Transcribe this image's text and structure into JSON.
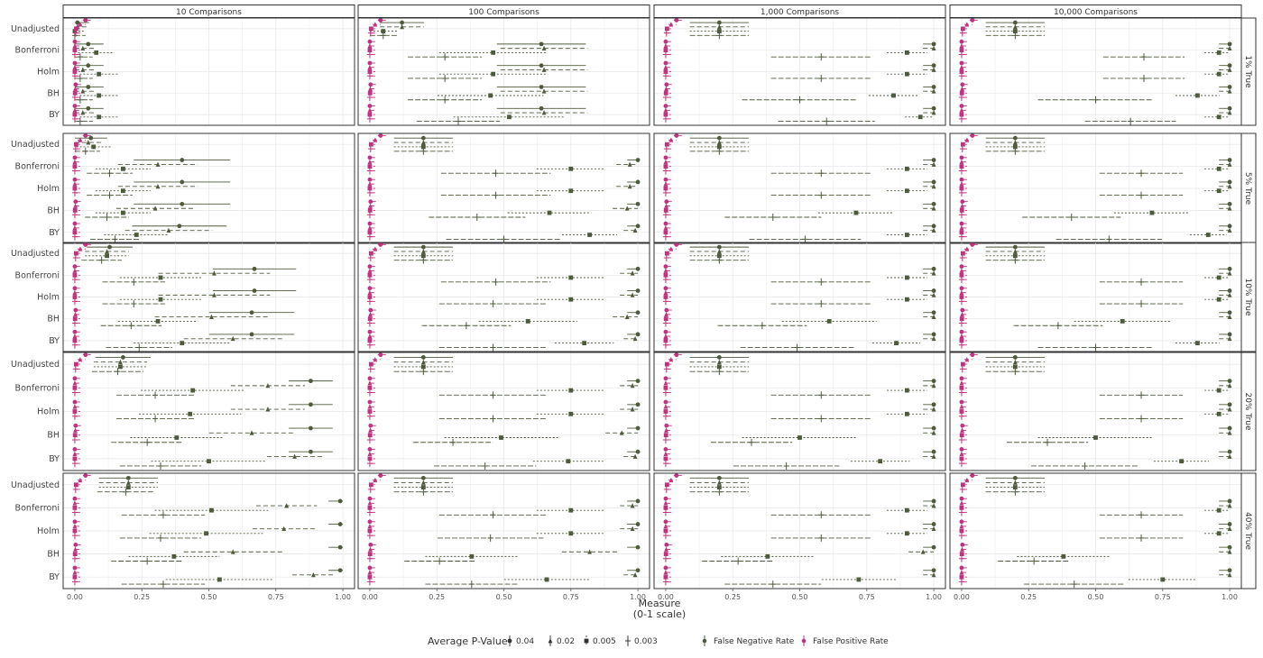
{
  "chart_data": {
    "type": "scatter",
    "x_axis": {
      "title_line1": "Measure",
      "title_line2": "(0-1 scale)",
      "range": [
        0,
        1
      ],
      "ticks": [
        "0.00",
        "0.25",
        "0.50",
        "0.75",
        "1.00"
      ],
      "grid": true
    },
    "y_categories": [
      "Unadjusted",
      "Bonferroni",
      "Holm",
      "BH",
      "BY"
    ],
    "columns": [
      "10 Comparisons",
      "100 Comparisons",
      "1,000 Comparisons",
      "10,000 Comparisons"
    ],
    "rows": [
      "1% True",
      "5% True",
      "10% True",
      "20% True",
      "40% True"
    ],
    "legend": {
      "title": "Average P-Value",
      "p_values": [
        "0.04",
        "0.02",
        "0.005",
        "0.003"
      ],
      "measures": [
        "False Negative Rate",
        "False Positive Rate"
      ],
      "position": "bottom"
    },
    "colors": {
      "fnr": "#4e5a3c",
      "fpr": "#c2307f"
    },
    "series_note_keys": {
      "p_order": [
        "0.04",
        "0.02",
        "0.005",
        "0.003"
      ]
    },
    "fpr": {
      "Unadjusted": [
        0.04,
        0.02,
        0.005,
        0.003
      ],
      "Bonferroni": [
        0.0,
        0.0,
        0.0,
        0.0
      ],
      "Holm": [
        0.0,
        0.0,
        0.0,
        0.0
      ],
      "BH": [
        0.003,
        0.002,
        0.001,
        0.0
      ],
      "BY": [
        0.0,
        0.0,
        0.0,
        0.0
      ]
    },
    "fnr": {
      "10 Comparisons": {
        "1% True": {
          "Unadjusted": [
            0.01,
            0.01,
            0.0,
            0.0
          ],
          "Bonferroni": [
            0.05,
            0.03,
            0.08,
            0.02
          ],
          "Holm": [
            0.05,
            0.03,
            0.09,
            0.02
          ],
          "BH": [
            0.05,
            0.03,
            0.09,
            0.02
          ],
          "BY": [
            0.05,
            0.03,
            0.09,
            0.02
          ]
        },
        "5% True": {
          "Unadjusted": [
            0.06,
            0.05,
            0.07,
            0.04
          ],
          "Bonferroni": [
            0.4,
            0.31,
            0.18,
            0.13
          ],
          "Holm": [
            0.4,
            0.31,
            0.18,
            0.13
          ],
          "BH": [
            0.4,
            0.3,
            0.18,
            0.12
          ],
          "BY": [
            0.39,
            0.35,
            0.23,
            0.15
          ]
        },
        "10% True": {
          "Unadjusted": [
            0.13,
            0.12,
            0.12,
            0.1
          ],
          "Bonferroni": [
            0.67,
            0.52,
            0.32,
            0.22
          ],
          "Holm": [
            0.67,
            0.52,
            0.32,
            0.22
          ],
          "BH": [
            0.66,
            0.51,
            0.31,
            0.21
          ],
          "BY": [
            0.66,
            0.59,
            0.4,
            0.24
          ]
        },
        "20% True": {
          "Unadjusted": [
            0.18,
            0.17,
            0.17,
            0.16
          ],
          "Bonferroni": [
            0.88,
            0.72,
            0.44,
            0.3
          ],
          "Holm": [
            0.88,
            0.72,
            0.43,
            0.3
          ],
          "BH": [
            0.88,
            0.66,
            0.38,
            0.27
          ],
          "BY": [
            0.88,
            0.82,
            0.5,
            0.32
          ]
        },
        "40% True": {
          "Unadjusted": [
            0.2,
            0.2,
            0.2,
            0.19
          ],
          "Bonferroni": [
            0.99,
            0.79,
            0.51,
            0.33
          ],
          "Holm": [
            0.99,
            0.78,
            0.49,
            0.32
          ],
          "BH": [
            0.99,
            0.59,
            0.37,
            0.27
          ],
          "BY": [
            0.99,
            0.89,
            0.54,
            0.33
          ]
        }
      },
      "100 Comparisons": {
        "1% True": {
          "Unadjusted": [
            0.12,
            0.12,
            0.05,
            0.05
          ],
          "Bonferroni": [
            0.64,
            0.65,
            0.46,
            0.28
          ],
          "Holm": [
            0.64,
            0.65,
            0.46,
            0.28
          ],
          "BH": [
            0.64,
            0.65,
            0.45,
            0.28
          ],
          "BY": [
            0.64,
            0.65,
            0.52,
            0.33
          ]
        },
        "5% True": {
          "Unadjusted": [
            0.2,
            0.2,
            0.2,
            0.2
          ],
          "Bonferroni": [
            1.0,
            0.97,
            0.75,
            0.47
          ],
          "Holm": [
            1.0,
            0.97,
            0.75,
            0.47
          ],
          "BH": [
            1.0,
            0.96,
            0.67,
            0.4
          ],
          "BY": [
            1.0,
            0.99,
            0.82,
            0.5
          ]
        },
        "10% True": {
          "Unadjusted": [
            0.2,
            0.2,
            0.2,
            0.2
          ],
          "Bonferroni": [
            1.0,
            0.98,
            0.75,
            0.47
          ],
          "Holm": [
            1.0,
            0.98,
            0.75,
            0.46
          ],
          "BH": [
            1.0,
            0.96,
            0.59,
            0.36
          ],
          "BY": [
            1.0,
            0.99,
            0.8,
            0.46
          ]
        },
        "20% True": {
          "Unadjusted": [
            0.2,
            0.2,
            0.2,
            0.2
          ],
          "Bonferroni": [
            1.0,
            0.98,
            0.75,
            0.46
          ],
          "Holm": [
            1.0,
            0.98,
            0.75,
            0.46
          ],
          "BH": [
            1.0,
            0.94,
            0.49,
            0.31
          ],
          "BY": [
            1.0,
            0.99,
            0.74,
            0.43
          ]
        },
        "40% True": {
          "Unadjusted": [
            0.2,
            0.2,
            0.2,
            0.2
          ],
          "Bonferroni": [
            1.0,
            0.98,
            0.75,
            0.46
          ],
          "Holm": [
            1.0,
            0.98,
            0.75,
            0.45
          ],
          "BH": [
            1.0,
            0.82,
            0.38,
            0.26
          ],
          "BY": [
            1.0,
            0.99,
            0.66,
            0.38
          ]
        }
      },
      "1,000 Comparisons": {
        "1% True": {
          "Unadjusted": [
            0.2,
            0.2,
            0.2,
            0.2
          ],
          "Bonferroni": [
            1.0,
            1.0,
            0.9,
            0.58
          ],
          "Holm": [
            1.0,
            1.0,
            0.9,
            0.58
          ],
          "BH": [
            1.0,
            1.0,
            0.85,
            0.5
          ],
          "BY": [
            1.0,
            1.0,
            0.95,
            0.6
          ]
        },
        "5% True": {
          "Unadjusted": [
            0.2,
            0.2,
            0.2,
            0.2
          ],
          "Bonferroni": [
            1.0,
            1.0,
            0.9,
            0.58
          ],
          "Holm": [
            1.0,
            1.0,
            0.9,
            0.58
          ],
          "BH": [
            1.0,
            1.0,
            0.71,
            0.4
          ],
          "BY": [
            1.0,
            1.0,
            0.9,
            0.52
          ]
        },
        "10% True": {
          "Unadjusted": [
            0.2,
            0.2,
            0.2,
            0.2
          ],
          "Bonferroni": [
            1.0,
            1.0,
            0.9,
            0.58
          ],
          "Holm": [
            1.0,
            1.0,
            0.9,
            0.58
          ],
          "BH": [
            1.0,
            1.0,
            0.61,
            0.36
          ],
          "BY": [
            1.0,
            1.0,
            0.86,
            0.49
          ]
        },
        "20% True": {
          "Unadjusted": [
            0.2,
            0.2,
            0.2,
            0.2
          ],
          "Bonferroni": [
            1.0,
            1.0,
            0.9,
            0.58
          ],
          "Holm": [
            1.0,
            1.0,
            0.9,
            0.58
          ],
          "BH": [
            1.0,
            1.0,
            0.5,
            0.32
          ],
          "BY": [
            1.0,
            1.0,
            0.8,
            0.45
          ]
        },
        "40% True": {
          "Unadjusted": [
            0.2,
            0.2,
            0.2,
            0.2
          ],
          "Bonferroni": [
            1.0,
            1.0,
            0.9,
            0.58
          ],
          "Holm": [
            1.0,
            1.0,
            0.9,
            0.58
          ],
          "BH": [
            1.0,
            0.96,
            0.38,
            0.27
          ],
          "BY": [
            1.0,
            1.0,
            0.72,
            0.4
          ]
        }
      },
      "10,000 Comparisons": {
        "1% True": {
          "Unadjusted": [
            0.2,
            0.2,
            0.2,
            0.2
          ],
          "Bonferroni": [
            1.0,
            1.0,
            0.96,
            0.68
          ],
          "Holm": [
            1.0,
            1.0,
            0.96,
            0.68
          ],
          "BH": [
            1.0,
            1.0,
            0.88,
            0.5
          ],
          "BY": [
            1.0,
            1.0,
            0.96,
            0.63
          ]
        },
        "5% True": {
          "Unadjusted": [
            0.2,
            0.2,
            0.2,
            0.2
          ],
          "Bonferroni": [
            1.0,
            1.0,
            0.96,
            0.67
          ],
          "Holm": [
            1.0,
            1.0,
            0.96,
            0.67
          ],
          "BH": [
            1.0,
            1.0,
            0.71,
            0.41
          ],
          "BY": [
            1.0,
            1.0,
            0.92,
            0.55
          ]
        },
        "10% True": {
          "Unadjusted": [
            0.2,
            0.2,
            0.2,
            0.2
          ],
          "Bonferroni": [
            1.0,
            1.0,
            0.96,
            0.67
          ],
          "Holm": [
            1.0,
            1.0,
            0.96,
            0.67
          ],
          "BH": [
            1.0,
            1.0,
            0.6,
            0.36
          ],
          "BY": [
            1.0,
            1.0,
            0.88,
            0.5
          ]
        },
        "20% True": {
          "Unadjusted": [
            0.2,
            0.2,
            0.2,
            0.2
          ],
          "Bonferroni": [
            1.0,
            1.0,
            0.96,
            0.67
          ],
          "Holm": [
            1.0,
            1.0,
            0.96,
            0.67
          ],
          "BH": [
            1.0,
            1.0,
            0.5,
            0.32
          ],
          "BY": [
            1.0,
            1.0,
            0.82,
            0.46
          ]
        },
        "40% True": {
          "Unadjusted": [
            0.2,
            0.2,
            0.2,
            0.2
          ],
          "Bonferroni": [
            1.0,
            1.0,
            0.96,
            0.67
          ],
          "Holm": [
            1.0,
            1.0,
            0.96,
            0.67
          ],
          "BH": [
            1.0,
            1.0,
            0.38,
            0.27
          ],
          "BY": [
            1.0,
            1.0,
            0.75,
            0.42
          ]
        }
      }
    }
  }
}
